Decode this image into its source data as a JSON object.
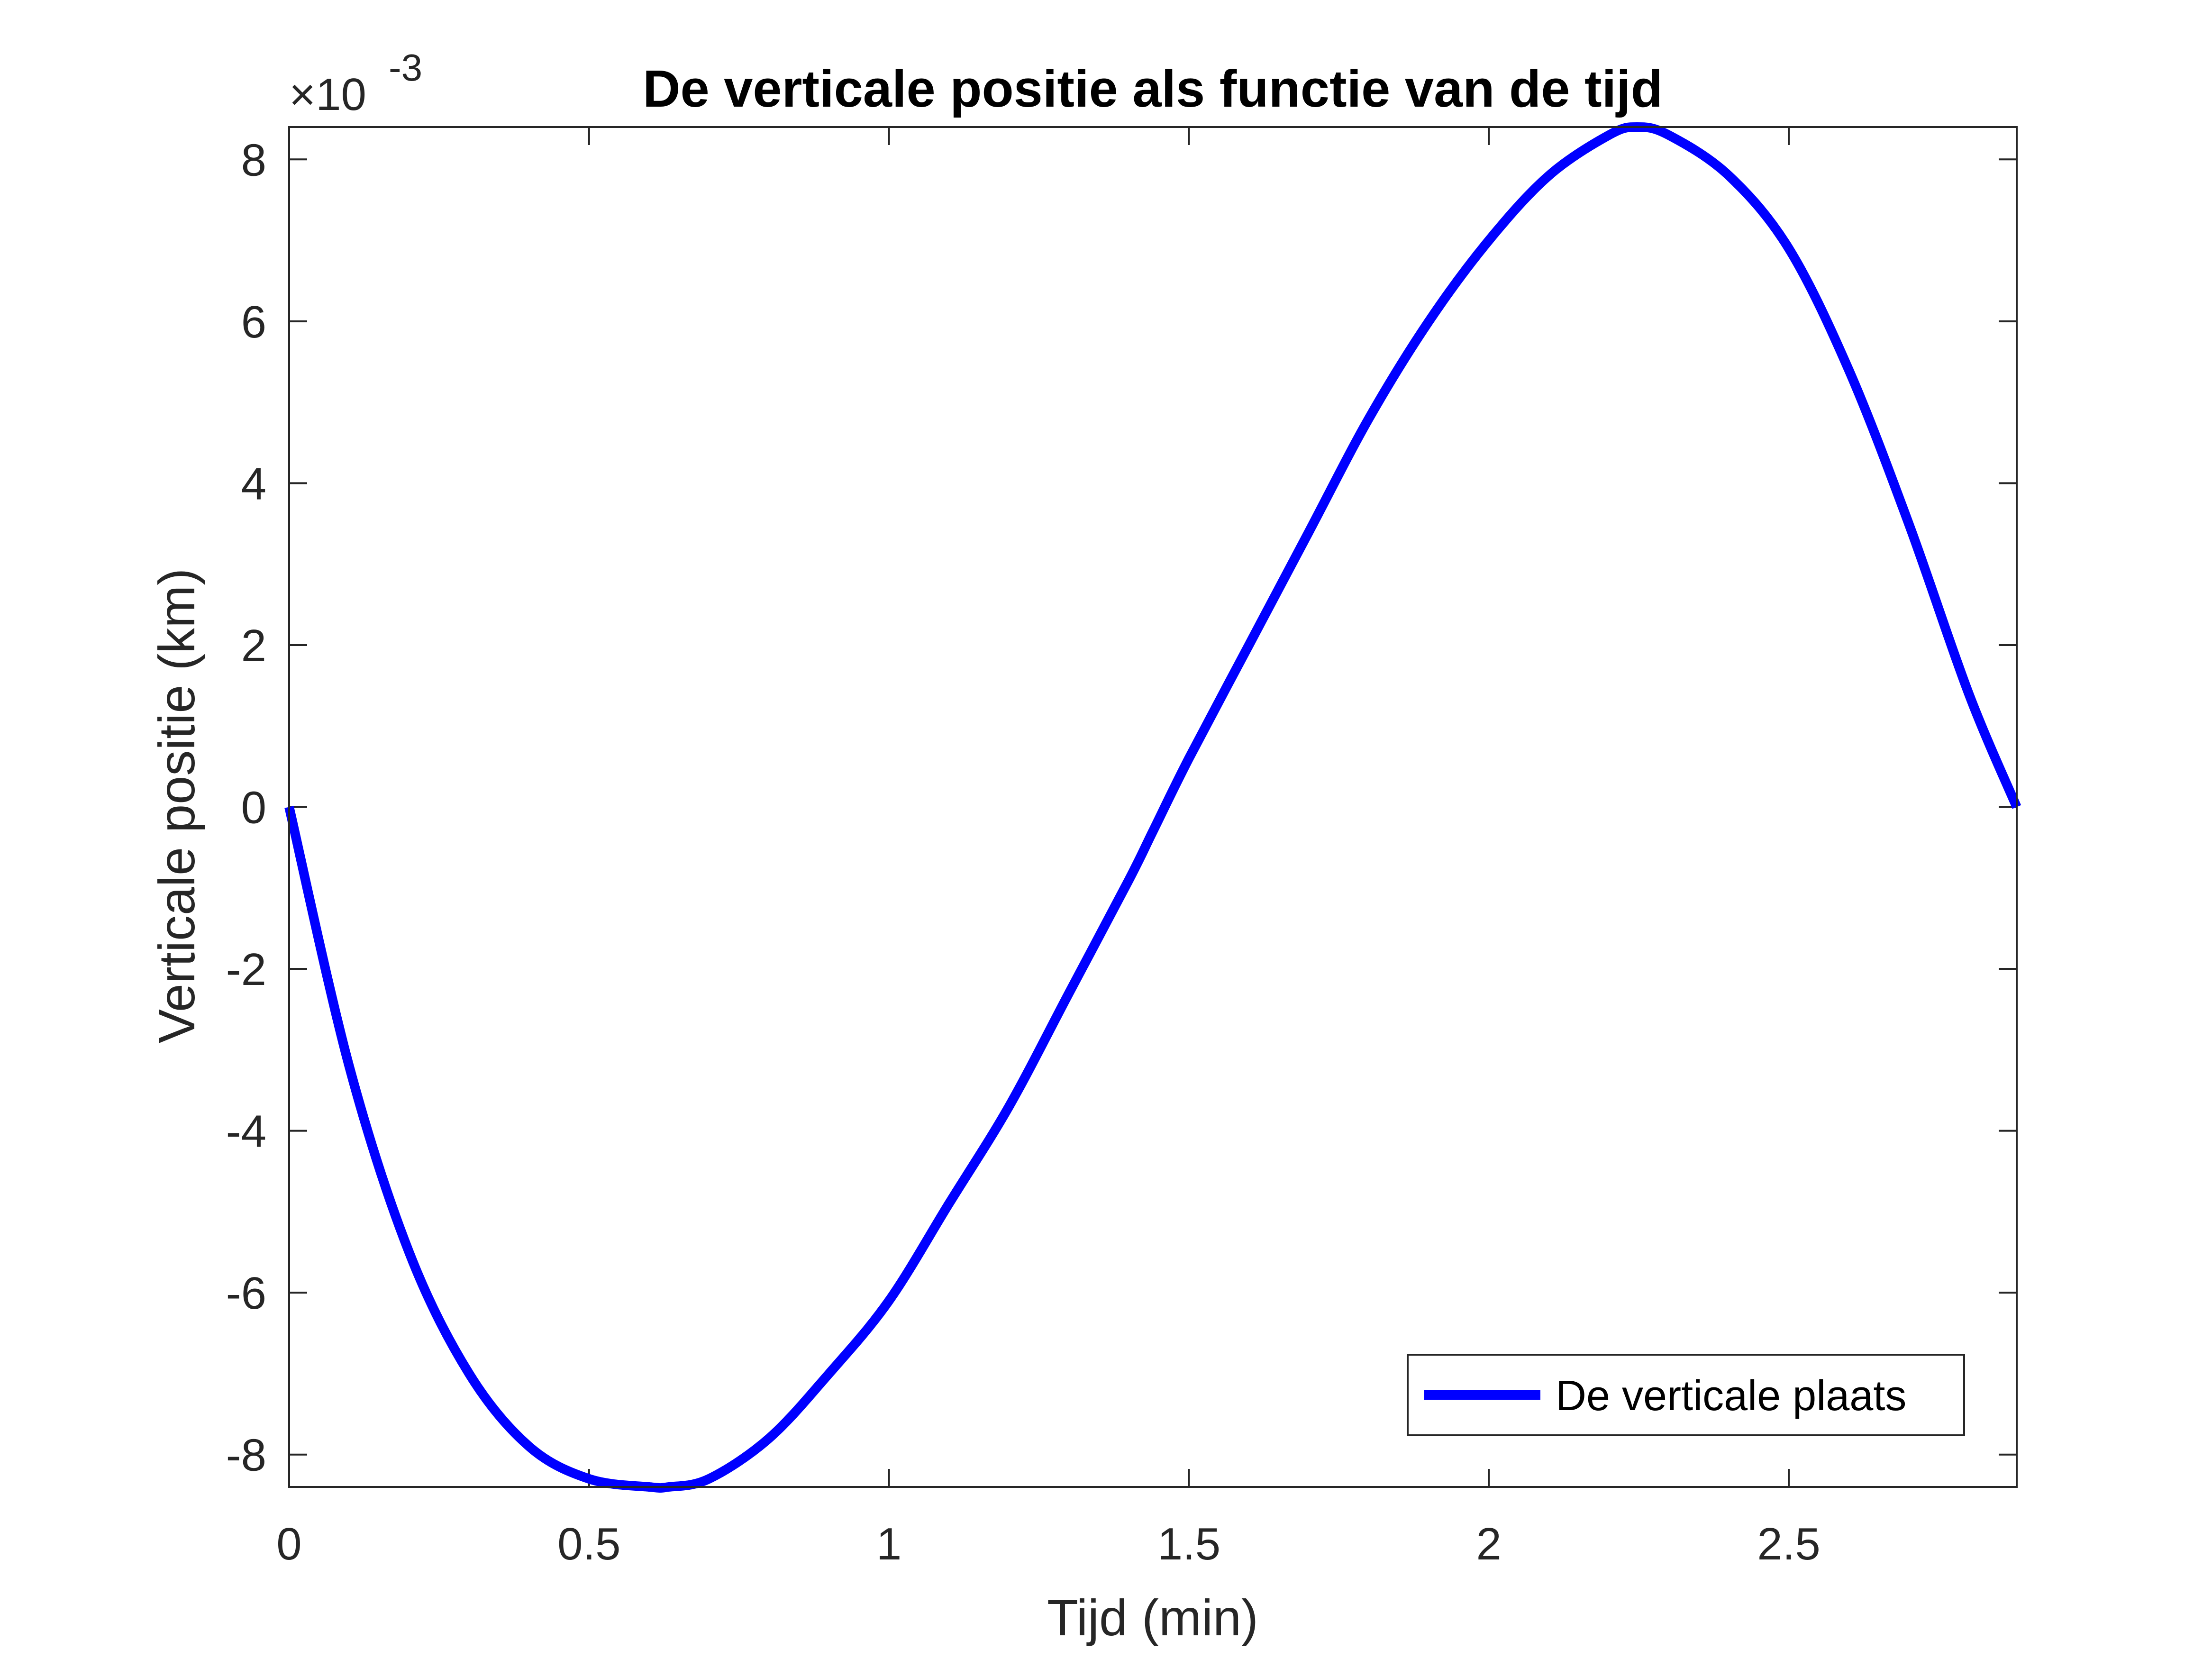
{
  "chart_data": {
    "type": "line",
    "title": "De verticale positie als functie van de tijd",
    "xlabel": "Tijd (min)",
    "ylabel": "Verticale positie (km)",
    "y_exponent_prefix": "×10",
    "y_exponent_power": "-3",
    "xlim": [
      0,
      2.88
    ],
    "ylim": [
      -0.0084,
      0.0084
    ],
    "x_ticks": [
      {
        "value": 0,
        "label": "0"
      },
      {
        "value": 0.5,
        "label": "0.5"
      },
      {
        "value": 1,
        "label": "1"
      },
      {
        "value": 1.5,
        "label": "1.5"
      },
      {
        "value": 2,
        "label": "2"
      },
      {
        "value": 2.5,
        "label": "2.5"
      }
    ],
    "y_ticks": [
      {
        "value": -0.008,
        "label": "-8"
      },
      {
        "value": -0.006,
        "label": "-6"
      },
      {
        "value": -0.004,
        "label": "-4"
      },
      {
        "value": -0.002,
        "label": "-2"
      },
      {
        "value": 0,
        "label": "0"
      },
      {
        "value": 0.002,
        "label": "2"
      },
      {
        "value": 0.004,
        "label": "4"
      },
      {
        "value": 0.006,
        "label": "6"
      },
      {
        "value": 0.008,
        "label": "8"
      }
    ],
    "grid": false,
    "box": true,
    "legend_location": "bottom-right",
    "series": [
      {
        "name": "De verticale plaats",
        "color": "#0000ff",
        "x": [
          0.0,
          0.1,
          0.2,
          0.3,
          0.4,
          0.5,
          0.6,
          0.633,
          0.7,
          0.8,
          0.9,
          1.0,
          1.1,
          1.2,
          1.3,
          1.4,
          1.44,
          1.5,
          1.6,
          1.7,
          1.8,
          1.9,
          2.0,
          2.1,
          2.2,
          2.247,
          2.3,
          2.4,
          2.5,
          2.6,
          2.7,
          2.8,
          2.88
        ],
        "y": [
          0.0,
          -0.0032,
          -0.0055,
          -0.007,
          -0.0079,
          -0.0083,
          -0.0084,
          -0.0084,
          -0.0083,
          -0.0078,
          -0.007,
          -0.0061,
          -0.0049,
          -0.0037,
          -0.0023,
          -0.0009,
          -0.0003,
          0.0006,
          0.002,
          0.0034,
          0.0048,
          0.006,
          0.007,
          0.0078,
          0.0083,
          0.0084,
          0.0083,
          0.0078,
          0.0069,
          0.0054,
          0.0035,
          0.0014,
          0.0
        ]
      }
    ]
  }
}
